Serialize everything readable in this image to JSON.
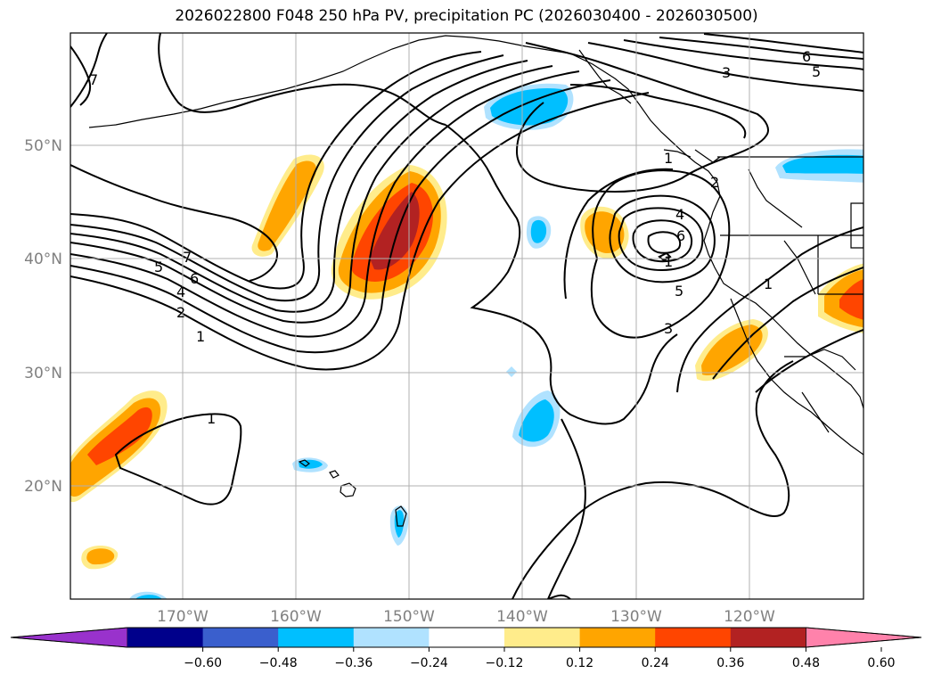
{
  "title": "2026022800 F048 250 hPa PV, precipitation PC (2026030400 - 2026030500)",
  "map": {
    "lon_ticks": [
      "170°W",
      "160°W",
      "150°W",
      "140°W",
      "130°W",
      "120°W"
    ],
    "lat_ticks": [
      "50°N",
      "40°N",
      "30°N",
      "20°N"
    ],
    "contour_labels": [
      "7",
      "6",
      "5",
      "4",
      "2",
      "1",
      "7",
      "1",
      "3",
      "6",
      "5",
      "1",
      "2",
      "4",
      "6",
      "1",
      "5",
      "3",
      "1"
    ]
  },
  "colorbar": {
    "ticks": [
      "−0.60",
      "−0.48",
      "−0.36",
      "−0.24",
      "−0.12",
      "0.12",
      "0.24",
      "0.36",
      "0.48",
      "0.60"
    ],
    "colors": [
      "#9932cc",
      "#00008b",
      "#3a5fcd",
      "#00bfff",
      "#b0e2ff",
      "#ffffff",
      "#ffec8b",
      "#ffa500",
      "#ff4500",
      "#b22222",
      "#ff82ab"
    ]
  }
}
